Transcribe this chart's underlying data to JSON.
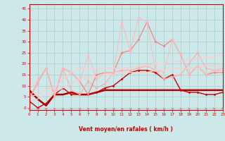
{
  "title": "",
  "xlabel": "Vent moyen/en rafales ( km/h )",
  "xlim": [
    0,
    23
  ],
  "ylim": [
    -1,
    47
  ],
  "yticks": [
    0,
    5,
    10,
    15,
    20,
    25,
    30,
    35,
    40,
    45
  ],
  "xticks": [
    0,
    1,
    2,
    3,
    4,
    5,
    6,
    7,
    8,
    9,
    10,
    11,
    12,
    13,
    14,
    15,
    16,
    17,
    18,
    19,
    20,
    21,
    22,
    23
  ],
  "background_color": "#cce8e8",
  "grid_color": "#aacccc",
  "arrow_color": "#ff6666",
  "lines": [
    {
      "x": [
        0,
        1,
        2,
        3,
        4,
        5,
        6,
        7,
        8,
        9,
        10,
        11,
        12,
        13,
        14,
        15,
        16,
        17,
        18,
        19,
        20,
        21,
        22,
        23
      ],
      "y": [
        8,
        4,
        1,
        6,
        6,
        7,
        6,
        6,
        7,
        8,
        8,
        8,
        8,
        8,
        8,
        8,
        8,
        8,
        8,
        8,
        8,
        8,
        8,
        8
      ],
      "color": "#aa0000",
      "lw": 1.8,
      "marker": null,
      "ms": 0
    },
    {
      "x": [
        0,
        1,
        2,
        3,
        4,
        5,
        6,
        7,
        8,
        9,
        10,
        11,
        12,
        13,
        14,
        15,
        16,
        17,
        18,
        19,
        20,
        21,
        22,
        23
      ],
      "y": [
        3,
        0,
        2,
        6,
        9,
        6,
        6,
        6,
        7,
        9,
        10,
        13,
        16,
        17,
        17,
        16,
        13,
        15,
        8,
        7,
        7,
        6,
        6,
        7
      ],
      "color": "#cc0000",
      "lw": 1.0,
      "marker": "D",
      "ms": 1.5
    },
    {
      "x": [
        0,
        1,
        2,
        3,
        4,
        5,
        6,
        7,
        8,
        9,
        10,
        11,
        12,
        13,
        14,
        15,
        16,
        17,
        18,
        19,
        20,
        21,
        22,
        23
      ],
      "y": [
        4,
        11,
        18,
        6,
        18,
        8,
        6,
        12,
        9,
        11,
        16,
        17,
        17,
        18,
        19,
        17,
        13,
        14,
        15,
        20,
        25,
        18,
        17,
        17
      ],
      "color": "#ffaaaa",
      "lw": 0.8,
      "marker": "D",
      "ms": 1.5
    },
    {
      "x": [
        0,
        1,
        2,
        3,
        4,
        5,
        6,
        7,
        8,
        9,
        10,
        11,
        12,
        13,
        14,
        15,
        16,
        17,
        18,
        19,
        20,
        21,
        22,
        23
      ],
      "y": [
        4,
        12,
        18,
        5,
        18,
        16,
        12,
        6,
        15,
        16,
        16,
        25,
        26,
        31,
        39,
        30,
        28,
        31,
        24,
        15,
        19,
        15,
        16,
        16
      ],
      "color": "#ff7777",
      "lw": 0.8,
      "marker": "D",
      "ms": 1.5
    },
    {
      "x": [
        0,
        1,
        2,
        3,
        4,
        5,
        6,
        7,
        8,
        9,
        10,
        11,
        12,
        13,
        14,
        15,
        16,
        17,
        18,
        19,
        20,
        21,
        22,
        23
      ],
      "y": [
        4,
        12,
        18,
        5,
        18,
        16,
        12,
        24,
        13,
        16,
        16,
        39,
        26,
        41,
        39,
        17,
        16,
        31,
        24,
        15,
        19,
        15,
        17,
        18
      ],
      "color": "#ffbbbb",
      "lw": 0.8,
      "marker": "D",
      "ms": 1.5
    },
    {
      "x": [
        0,
        1,
        2,
        3,
        4,
        5,
        6,
        7,
        8,
        9,
        10,
        11,
        12,
        13,
        14,
        15,
        16,
        17,
        18,
        19,
        20,
        21,
        22,
        23
      ],
      "y": [
        3,
        4,
        6,
        7,
        9,
        11,
        13,
        14,
        14,
        15,
        15,
        16,
        16,
        16,
        16,
        17,
        17,
        18,
        18,
        18,
        18,
        19,
        19,
        19
      ],
      "color": "#ffcccc",
      "lw": 1.0,
      "marker": null,
      "ms": 0
    },
    {
      "x": [
        0,
        1,
        2,
        3,
        4,
        5,
        6,
        7,
        8,
        9,
        10,
        11,
        12,
        13,
        14,
        15,
        16,
        17,
        18,
        19,
        20,
        21,
        22,
        23
      ],
      "y": [
        5,
        6,
        9,
        9,
        13,
        16,
        18,
        18,
        18,
        18,
        18,
        18,
        18,
        19,
        19,
        20,
        20,
        21,
        21,
        22,
        22,
        23,
        23,
        24
      ],
      "color": "#ffcccc",
      "lw": 1.0,
      "marker": null,
      "ms": 0
    }
  ],
  "arrow_angles": [
    45,
    45,
    45,
    45,
    45,
    45,
    45,
    45,
    30,
    15,
    0,
    0,
    0,
    0,
    0,
    -15,
    -30,
    -30,
    -45,
    -45,
    -45,
    -45,
    -60,
    -60
  ]
}
